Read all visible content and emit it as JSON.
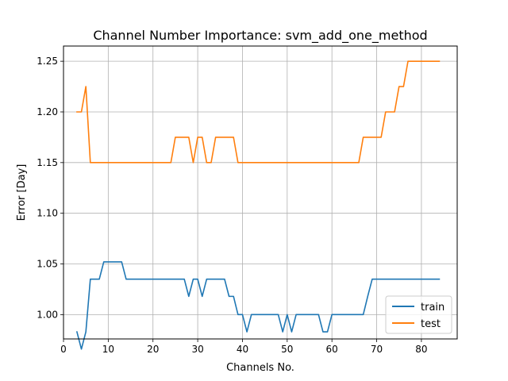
{
  "chart_data": {
    "type": "line",
    "title": "Channel Number Importance: svm_add_one_method",
    "xlabel": "Channels No.",
    "ylabel": "Error [Day]",
    "xlim": [
      0,
      88
    ],
    "ylim": [
      0.976,
      1.265
    ],
    "xticks": [
      0,
      10,
      20,
      30,
      40,
      50,
      60,
      70,
      80
    ],
    "yticks": [
      1.0,
      1.05,
      1.1,
      1.15,
      1.2,
      1.25
    ],
    "ytick_labels": [
      "1.00",
      "1.05",
      "1.10",
      "1.15",
      "1.20",
      "1.25"
    ],
    "grid": true,
    "legend": {
      "location": "lower right"
    },
    "series": [
      {
        "name": "train",
        "color": "#1f77b4",
        "points": [
          [
            3,
            0.983
          ],
          [
            4,
            0.966
          ],
          [
            5,
            0.983
          ],
          [
            6,
            1.035
          ],
          [
            7,
            1.035
          ],
          [
            8,
            1.035
          ],
          [
            9,
            1.052
          ],
          [
            10,
            1.052
          ],
          [
            11,
            1.052
          ],
          [
            12,
            1.052
          ],
          [
            13,
            1.052
          ],
          [
            14,
            1.035
          ],
          [
            15,
            1.035
          ],
          [
            16,
            1.035
          ],
          [
            17,
            1.035
          ],
          [
            18,
            1.035
          ],
          [
            19,
            1.035
          ],
          [
            20,
            1.035
          ],
          [
            21,
            1.035
          ],
          [
            22,
            1.035
          ],
          [
            23,
            1.035
          ],
          [
            24,
            1.035
          ],
          [
            25,
            1.035
          ],
          [
            26,
            1.035
          ],
          [
            27,
            1.035
          ],
          [
            28,
            1.018
          ],
          [
            29,
            1.035
          ],
          [
            30,
            1.035
          ],
          [
            31,
            1.018
          ],
          [
            32,
            1.035
          ],
          [
            33,
            1.035
          ],
          [
            34,
            1.035
          ],
          [
            35,
            1.035
          ],
          [
            36,
            1.035
          ],
          [
            37,
            1.018
          ],
          [
            38,
            1.018
          ],
          [
            39,
            1.0
          ],
          [
            40,
            1.0
          ],
          [
            41,
            0.983
          ],
          [
            42,
            1.0
          ],
          [
            43,
            1.0
          ],
          [
            44,
            1.0
          ],
          [
            45,
            1.0
          ],
          [
            46,
            1.0
          ],
          [
            47,
            1.0
          ],
          [
            48,
            1.0
          ],
          [
            49,
            0.983
          ],
          [
            50,
            1.0
          ],
          [
            51,
            0.983
          ],
          [
            52,
            1.0
          ],
          [
            53,
            1.0
          ],
          [
            54,
            1.0
          ],
          [
            55,
            1.0
          ],
          [
            56,
            1.0
          ],
          [
            57,
            1.0
          ],
          [
            58,
            0.983
          ],
          [
            59,
            0.983
          ],
          [
            60,
            1.0
          ],
          [
            61,
            1.0
          ],
          [
            62,
            1.0
          ],
          [
            63,
            1.0
          ],
          [
            64,
            1.0
          ],
          [
            65,
            1.0
          ],
          [
            66,
            1.0
          ],
          [
            67,
            1.0
          ],
          [
            68,
            1.018
          ],
          [
            69,
            1.035
          ],
          [
            70,
            1.035
          ],
          [
            71,
            1.035
          ],
          [
            72,
            1.035
          ],
          [
            73,
            1.035
          ],
          [
            74,
            1.035
          ],
          [
            75,
            1.035
          ],
          [
            76,
            1.035
          ],
          [
            77,
            1.035
          ],
          [
            78,
            1.035
          ],
          [
            79,
            1.035
          ],
          [
            80,
            1.035
          ],
          [
            81,
            1.035
          ],
          [
            82,
            1.035
          ],
          [
            83,
            1.035
          ],
          [
            84,
            1.035
          ]
        ]
      },
      {
        "name": "test",
        "color": "#ff7f0e",
        "points": [
          [
            3,
            1.2
          ],
          [
            4,
            1.2
          ],
          [
            5,
            1.225
          ],
          [
            6,
            1.15
          ],
          [
            7,
            1.15
          ],
          [
            8,
            1.15
          ],
          [
            9,
            1.15
          ],
          [
            10,
            1.15
          ],
          [
            11,
            1.15
          ],
          [
            12,
            1.15
          ],
          [
            13,
            1.15
          ],
          [
            14,
            1.15
          ],
          [
            15,
            1.15
          ],
          [
            16,
            1.15
          ],
          [
            17,
            1.15
          ],
          [
            18,
            1.15
          ],
          [
            19,
            1.15
          ],
          [
            20,
            1.15
          ],
          [
            21,
            1.15
          ],
          [
            22,
            1.15
          ],
          [
            23,
            1.15
          ],
          [
            24,
            1.15
          ],
          [
            25,
            1.175
          ],
          [
            26,
            1.175
          ],
          [
            27,
            1.175
          ],
          [
            28,
            1.175
          ],
          [
            29,
            1.15
          ],
          [
            30,
            1.175
          ],
          [
            31,
            1.175
          ],
          [
            32,
            1.15
          ],
          [
            33,
            1.15
          ],
          [
            34,
            1.175
          ],
          [
            35,
            1.175
          ],
          [
            36,
            1.175
          ],
          [
            37,
            1.175
          ],
          [
            38,
            1.175
          ],
          [
            39,
            1.15
          ],
          [
            40,
            1.15
          ],
          [
            41,
            1.15
          ],
          [
            42,
            1.15
          ],
          [
            43,
            1.15
          ],
          [
            44,
            1.15
          ],
          [
            45,
            1.15
          ],
          [
            46,
            1.15
          ],
          [
            47,
            1.15
          ],
          [
            48,
            1.15
          ],
          [
            49,
            1.15
          ],
          [
            50,
            1.15
          ],
          [
            51,
            1.15
          ],
          [
            52,
            1.15
          ],
          [
            53,
            1.15
          ],
          [
            54,
            1.15
          ],
          [
            55,
            1.15
          ],
          [
            56,
            1.15
          ],
          [
            57,
            1.15
          ],
          [
            58,
            1.15
          ],
          [
            59,
            1.15
          ],
          [
            60,
            1.15
          ],
          [
            61,
            1.15
          ],
          [
            62,
            1.15
          ],
          [
            63,
            1.15
          ],
          [
            64,
            1.15
          ],
          [
            65,
            1.15
          ],
          [
            66,
            1.15
          ],
          [
            67,
            1.175
          ],
          [
            68,
            1.175
          ],
          [
            69,
            1.175
          ],
          [
            70,
            1.175
          ],
          [
            71,
            1.175
          ],
          [
            72,
            1.2
          ],
          [
            73,
            1.2
          ],
          [
            74,
            1.2
          ],
          [
            75,
            1.225
          ],
          [
            76,
            1.225
          ],
          [
            77,
            1.25
          ],
          [
            78,
            1.25
          ],
          [
            79,
            1.25
          ],
          [
            80,
            1.25
          ],
          [
            81,
            1.25
          ],
          [
            82,
            1.25
          ],
          [
            83,
            1.25
          ],
          [
            84,
            1.25
          ]
        ]
      }
    ]
  }
}
